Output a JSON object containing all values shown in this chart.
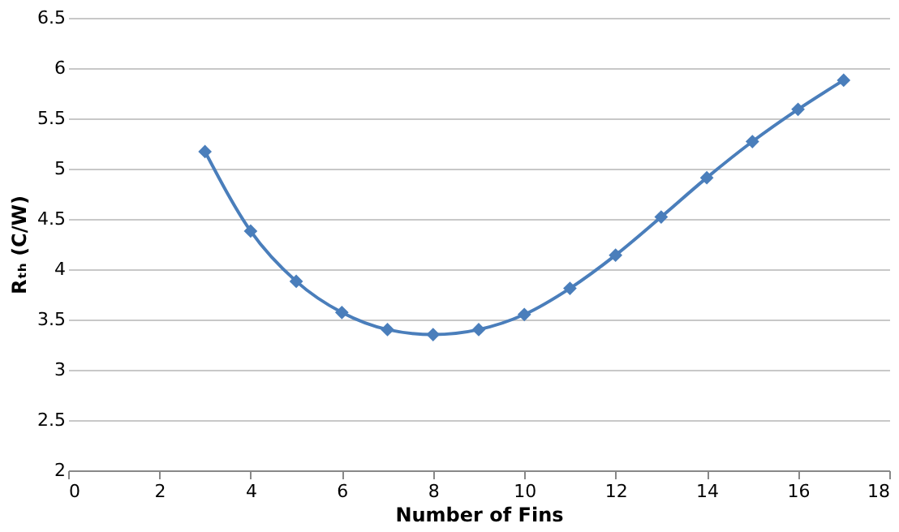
{
  "chart_data": {
    "type": "line",
    "xlabel": "Number of Fins",
    "ylabel": "Rₜₕ (C/W)",
    "x": [
      3,
      4,
      5,
      6,
      7,
      8,
      9,
      10,
      11,
      12,
      13,
      14,
      15,
      16,
      17
    ],
    "series": [
      {
        "color": "#4a7ebb",
        "values": [
          5.17,
          4.38,
          3.88,
          3.57,
          3.4,
          3.35,
          3.4,
          3.55,
          3.81,
          4.14,
          4.52,
          4.91,
          5.27,
          5.59,
          5.88
        ]
      }
    ],
    "xlim": [
      0,
      18
    ],
    "xticks": [
      0,
      2,
      4,
      6,
      8,
      10,
      12,
      14,
      16,
      18
    ],
    "ylim": [
      2,
      6.5
    ],
    "yticks": [
      2,
      2.5,
      3,
      3.5,
      4,
      4.5,
      5,
      5.5,
      6,
      6.5
    ],
    "grid": "y",
    "marker": "diamond",
    "line_style": "solid"
  }
}
